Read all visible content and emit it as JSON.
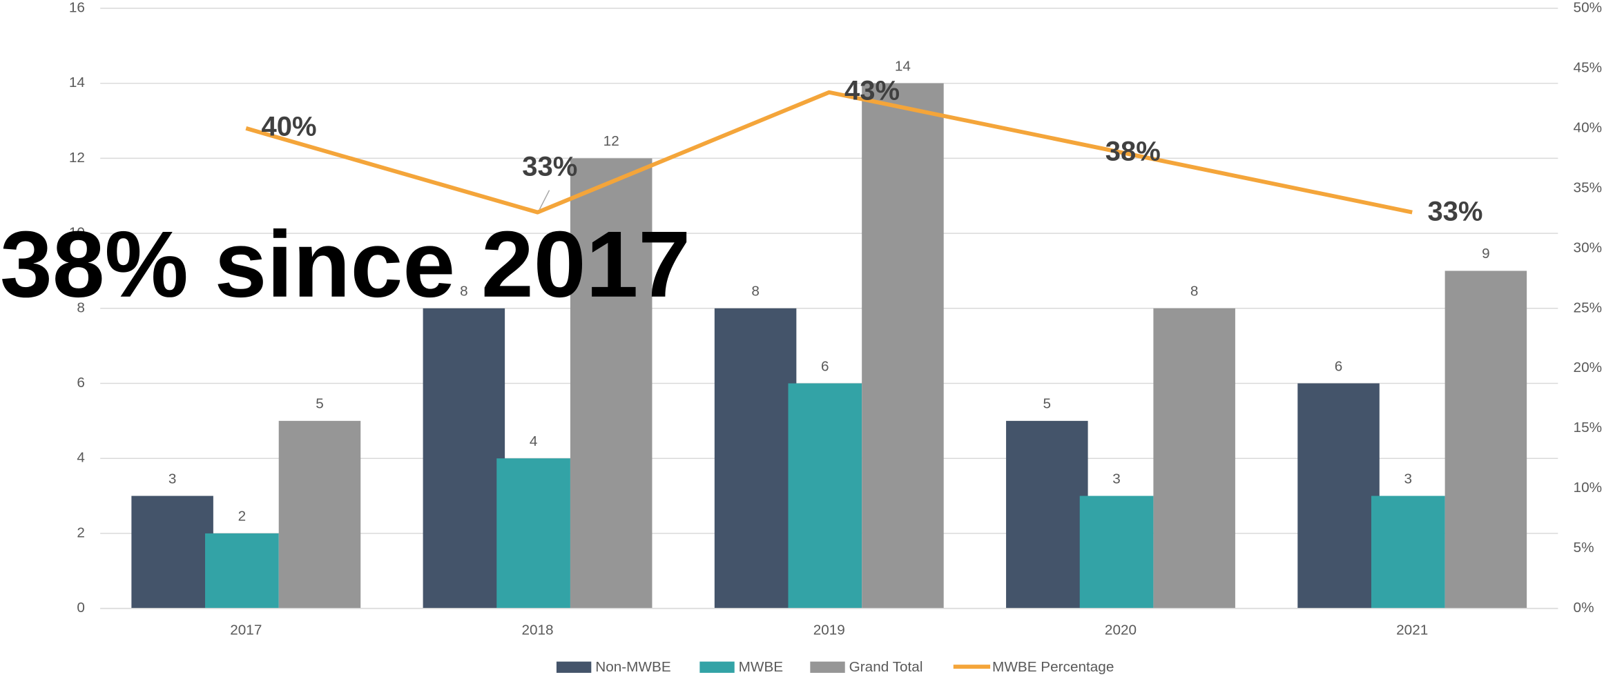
{
  "chart_data": {
    "type": "bar",
    "annotation": "38% since 2017",
    "categories": [
      "2017",
      "2018",
      "2019",
      "2020",
      "2021"
    ],
    "series": [
      {
        "name": "Non-MWBE",
        "color": "#44546a",
        "values": [
          3,
          8,
          8,
          5,
          6
        ]
      },
      {
        "name": "MWBE",
        "color": "#33a3a6",
        "values": [
          2,
          4,
          6,
          3,
          3
        ]
      },
      {
        "name": "Grand Total",
        "color": "#969696",
        "values": [
          5,
          12,
          14,
          8,
          9
        ]
      },
      {
        "name": "MWBE Percentage",
        "type": "line",
        "axis": "y2",
        "color": "#f4a53a",
        "values": [
          40,
          33,
          43,
          38,
          33
        ],
        "value_labels": [
          "40%",
          "33%",
          "43%",
          "38%",
          "33%"
        ]
      }
    ],
    "ylim": [
      0,
      16
    ],
    "yticks": [
      0,
      2,
      4,
      6,
      8,
      10,
      12,
      14,
      16
    ],
    "y2lim": [
      0,
      50
    ],
    "y2ticks": [
      {
        "value": 0,
        "label": "0%"
      },
      {
        "value": 5,
        "label": "5%"
      },
      {
        "value": 10,
        "label": "10%"
      },
      {
        "value": 15,
        "label": "15%"
      },
      {
        "value": 20,
        "label": "20%"
      },
      {
        "value": 25,
        "label": "25%"
      },
      {
        "value": 30,
        "label": "30%"
      },
      {
        "value": 35,
        "label": "35%"
      },
      {
        "value": 40,
        "label": "40%"
      },
      {
        "value": 45,
        "label": "45%"
      },
      {
        "value": 50,
        "label": "50%"
      }
    ],
    "grid": true,
    "legend": "bottom"
  }
}
